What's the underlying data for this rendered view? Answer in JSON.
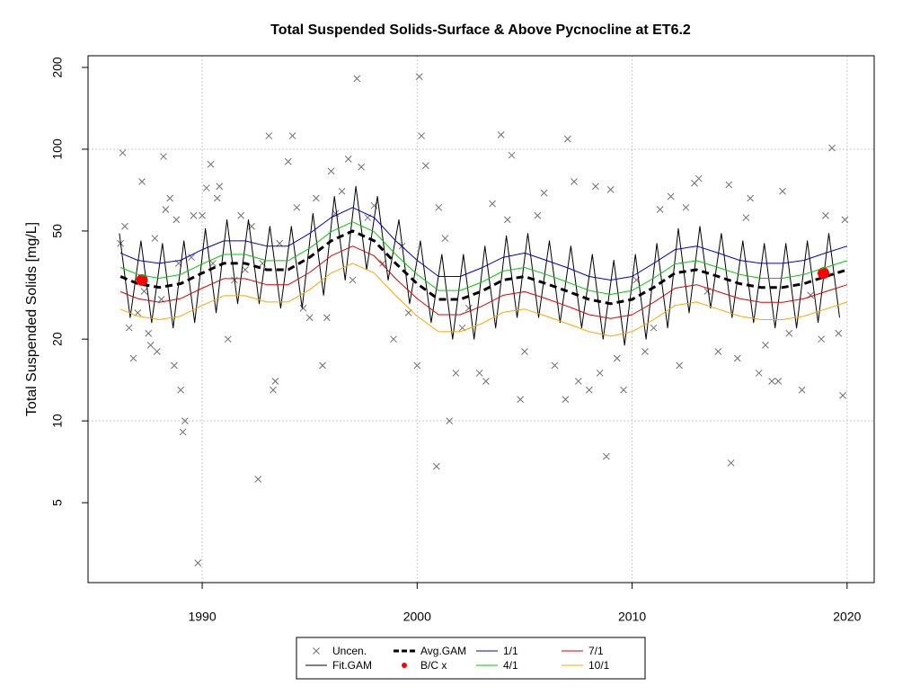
{
  "chart_data": {
    "type": "line",
    "title": "Total Suspended Solids-Surface & Above Pycnocline at ET6.2",
    "y_label": "Total Suspended Solids [mg/L]",
    "xlim": [
      1984.69,
      2021.26
    ],
    "ylim": [
      2.54,
      220.8
    ],
    "log_y": true,
    "xticks": [
      1990,
      2000,
      2010,
      2020
    ],
    "yticks": [
      5,
      10,
      20,
      50,
      100,
      200
    ],
    "xgrid": [
      1990,
      2000,
      2010,
      2020
    ],
    "ygrid": [
      10,
      100
    ],
    "legend": "bottom",
    "series": [
      {
        "name": "Uncen.",
        "type": "scatter",
        "marker": "x",
        "color": "#707070",
        "x": [
          1986.2,
          1986.3,
          1986.4,
          1986.6,
          1986.8,
          1987.0,
          1987.2,
          1987.3,
          1987.5,
          1987.6,
          1987.8,
          1987.9,
          1988.1,
          1988.2,
          1988.3,
          1988.5,
          1988.7,
          1988.8,
          1988.9,
          1989.0,
          1989.1,
          1989.2,
          1989.5,
          1989.6,
          1989.8,
          1990.0,
          1990.2,
          1990.4,
          1990.5,
          1990.7,
          1990.8,
          1991.2,
          1991.5,
          1991.8,
          1992.0,
          1992.3,
          1992.6,
          1992.8,
          1993.1,
          1993.3,
          1993.4,
          1993.6,
          1994.0,
          1994.2,
          1994.4,
          1994.7,
          1995.0,
          1995.3,
          1995.6,
          1995.8,
          1996.0,
          1996.2,
          1996.5,
          1996.8,
          1997.0,
          1997.2,
          1997.4,
          1997.7,
          1998.0,
          1998.4,
          1998.9,
          1999.3,
          1999.6,
          2000.0,
          2000.1,
          2000.2,
          2000.4,
          2000.9,
          2001.0,
          2001.3,
          2001.5,
          2001.8,
          2002.1,
          2002.4,
          2002.9,
          2003.2,
          2003.5,
          2003.9,
          2004.2,
          2004.4,
          2004.8,
          2005.0,
          2005.6,
          2005.9,
          2006.4,
          2006.9,
          2007.0,
          2007.3,
          2007.5,
          2008.0,
          2008.3,
          2008.5,
          2008.8,
          2009.0,
          2009.3,
          2009.6,
          2010.2,
          2010.6,
          2011.0,
          2011.3,
          2011.8,
          2012.2,
          2012.5,
          2012.9,
          2013.1,
          2013.5,
          2014.0,
          2014.5,
          2014.6,
          2014.9,
          2015.3,
          2015.5,
          2015.9,
          2016.2,
          2016.5,
          2016.8,
          2017.0,
          2017.3,
          2017.9,
          2018.3,
          2018.8,
          2019.0,
          2019.3,
          2019.6,
          2019.8,
          2019.9
        ],
        "values": [
          45,
          97,
          52,
          22,
          17,
          25,
          76,
          30,
          21,
          19,
          47,
          18,
          28,
          94,
          60,
          66,
          16,
          55,
          38,
          13,
          9.1,
          10,
          40,
          57,
          3.0,
          57,
          72,
          88,
          38,
          66,
          73,
          20,
          33,
          57,
          36,
          52,
          6.1,
          38,
          112,
          13,
          14,
          45,
          90,
          112,
          61,
          26,
          24,
          66,
          16,
          24,
          83,
          58,
          70,
          92,
          33,
          182,
          86,
          56,
          62,
          38,
          20,
          44,
          25,
          16,
          185,
          112,
          87,
          6.8,
          61,
          47,
          10,
          15,
          22,
          26,
          15,
          14,
          63,
          113,
          55,
          95,
          12,
          18,
          57,
          69,
          16,
          12,
          109,
          76,
          14,
          13,
          73,
          15,
          7.4,
          71,
          17,
          13,
          33,
          18,
          22,
          60,
          67,
          16,
          61,
          75,
          78,
          30,
          18,
          74,
          7.0,
          17,
          56,
          66,
          15,
          19,
          14,
          14,
          70,
          21,
          13,
          29,
          20,
          57,
          101,
          21,
          12.4,
          55
        ]
      },
      {
        "name": "Fit.GAM",
        "type": "line",
        "color": "#000000",
        "width": 1,
        "x": [
          1986.15,
          1986.65,
          1987.15,
          1987.65,
          1988.15,
          1988.65,
          1989.15,
          1989.65,
          1990.15,
          1990.65,
          1991.15,
          1991.65,
          1992.15,
          1992.65,
          1993.15,
          1993.65,
          1994.15,
          1994.65,
          1995.15,
          1995.65,
          1996.15,
          1996.65,
          1997.15,
          1997.65,
          1998.15,
          1998.65,
          1999.15,
          1999.65,
          2000.15,
          2000.65,
          2001.15,
          2001.65,
          2002.15,
          2002.65,
          2003.15,
          2003.65,
          2004.15,
          2004.65,
          2005.15,
          2005.65,
          2006.15,
          2006.65,
          2007.15,
          2007.65,
          2008.15,
          2008.65,
          2009.15,
          2009.65,
          2010.15,
          2010.65,
          2011.15,
          2011.65,
          2012.15,
          2012.65,
          2013.15,
          2013.65,
          2014.15,
          2014.65,
          2015.15,
          2015.65,
          2016.15,
          2016.65,
          2017.15,
          2017.65,
          2018.15,
          2018.65,
          2019.15,
          2019.65
        ],
        "values": [
          49,
          24,
          46,
          23,
          45,
          22,
          46,
          23,
          51,
          25,
          55,
          27,
          55,
          27,
          52,
          26,
          52,
          26,
          58,
          29,
          67,
          33,
          73,
          36,
          67,
          33,
          55,
          27,
          46,
          23,
          41,
          20,
          41,
          20,
          44,
          22,
          48,
          24,
          49,
          24,
          46,
          23,
          44,
          22,
          41,
          20,
          39,
          19,
          41,
          20,
          45,
          22,
          51,
          25,
          52,
          26,
          49,
          24,
          46,
          23,
          45,
          22,
          45,
          22,
          46,
          23,
          49,
          24
        ]
      },
      {
        "name": "Avg.GAM",
        "type": "line",
        "color": "#000000",
        "width": 3,
        "dashed": true,
        "x": [
          1986.2,
          1987,
          1988,
          1989,
          1990,
          1991,
          1992,
          1993,
          1994,
          1995,
          1996,
          1997,
          1998,
          1999,
          2000,
          2001,
          2002,
          2003,
          2004,
          2005,
          2006,
          2007,
          2008,
          2009,
          2010,
          2011,
          2012,
          2013,
          2014,
          2015,
          2016,
          2017,
          2018,
          2019,
          2020
        ],
        "values": [
          34,
          32,
          31,
          32,
          35,
          38,
          38,
          36,
          36,
          40,
          46,
          50,
          46,
          38,
          32,
          28,
          28,
          30,
          33,
          34,
          32,
          30,
          28,
          27,
          28,
          31,
          35,
          36,
          34,
          32,
          31,
          31,
          32,
          34,
          36
        ]
      },
      {
        "name": "B/C x",
        "type": "scatter",
        "marker": "dot",
        "color": "#ff0000",
        "x": [
          1987.2,
          2018.9
        ],
        "values": [
          33,
          35
        ]
      },
      {
        "name": "1/1",
        "type": "line",
        "color": "#0000cc",
        "width": 1,
        "x": [
          1986.2,
          1987,
          1988,
          1989,
          1990,
          1991,
          1992,
          1993,
          1994,
          1995,
          1996,
          1997,
          1998,
          1999,
          2000,
          2001,
          2002,
          2003,
          2004,
          2005,
          2006,
          2007,
          2008,
          2009,
          2010,
          2011,
          2012,
          2013,
          2014,
          2015,
          2016,
          2017,
          2018,
          2019,
          2020
        ],
        "values": [
          41.5,
          39,
          38,
          39,
          42.7,
          46,
          46,
          44,
          44,
          49,
          56,
          61,
          56,
          46,
          39,
          34,
          34,
          36.6,
          40,
          41.5,
          39,
          36.6,
          34,
          33,
          34,
          38,
          42.7,
          44,
          41.5,
          39,
          38,
          38,
          39,
          41.5,
          44
        ]
      },
      {
        "name": "4/1",
        "type": "line",
        "color": "#00cc00",
        "width": 1,
        "x": [
          1986.2,
          1987,
          1988,
          1989,
          1990,
          1991,
          1992,
          1993,
          1994,
          1995,
          1996,
          1997,
          1998,
          1999,
          2000,
          2001,
          2002,
          2003,
          2004,
          2005,
          2006,
          2007,
          2008,
          2009,
          2010,
          2011,
          2012,
          2013,
          2014,
          2015,
          2016,
          2017,
          2018,
          2019,
          2020
        ],
        "values": [
          36.7,
          34.6,
          33.5,
          34.6,
          37.8,
          41,
          41,
          38.9,
          38.9,
          43.2,
          49.7,
          54,
          49.7,
          41,
          34.6,
          30.2,
          30.2,
          32.4,
          35.6,
          36.7,
          34.6,
          32.4,
          30.2,
          29.2,
          30.2,
          33.5,
          37.8,
          38.9,
          36.7,
          34.6,
          33.5,
          33.5,
          34.6,
          36.7,
          38.9
        ]
      },
      {
        "name": "7/1",
        "type": "line",
        "color": "#dd0000",
        "width": 1,
        "x": [
          1986.2,
          1987,
          1988,
          1989,
          1990,
          1991,
          1992,
          1993,
          1994,
          1995,
          1996,
          1997,
          1998,
          1999,
          2000,
          2001,
          2002,
          2003,
          2004,
          2005,
          2006,
          2007,
          2008,
          2009,
          2010,
          2011,
          2012,
          2013,
          2014,
          2015,
          2016,
          2017,
          2018,
          2019,
          2020
        ],
        "values": [
          29.9,
          28.2,
          27.3,
          28.2,
          30.8,
          33.4,
          33.4,
          31.7,
          31.7,
          35.2,
          40.5,
          44,
          40.5,
          33.4,
          28.2,
          24.6,
          24.6,
          26.4,
          29,
          29.9,
          28.2,
          26.4,
          24.6,
          23.8,
          24.6,
          27.3,
          30.8,
          31.7,
          29.9,
          28.2,
          27.3,
          27.3,
          28.2,
          29.9,
          31.7
        ]
      },
      {
        "name": "10/1",
        "type": "line",
        "color": "#ffa500",
        "width": 1,
        "x": [
          1986.2,
          1987,
          1988,
          1989,
          1990,
          1991,
          1992,
          1993,
          1994,
          1995,
          1996,
          1997,
          1998,
          1999,
          2000,
          2001,
          2002,
          2003,
          2004,
          2005,
          2006,
          2007,
          2008,
          2009,
          2010,
          2011,
          2012,
          2013,
          2014,
          2015,
          2016,
          2017,
          2018,
          2019,
          2020
        ],
        "values": [
          25.8,
          24.3,
          23.6,
          24.3,
          26.6,
          28.9,
          28.9,
          27.4,
          27.4,
          30.4,
          35,
          38,
          35,
          28.9,
          24.3,
          21.3,
          21.3,
          22.8,
          25.1,
          25.8,
          24.3,
          22.8,
          21.3,
          20.5,
          21.3,
          23.6,
          26.6,
          27.4,
          25.8,
          24.3,
          23.6,
          23.6,
          24.3,
          25.8,
          27.4
        ]
      }
    ]
  }
}
